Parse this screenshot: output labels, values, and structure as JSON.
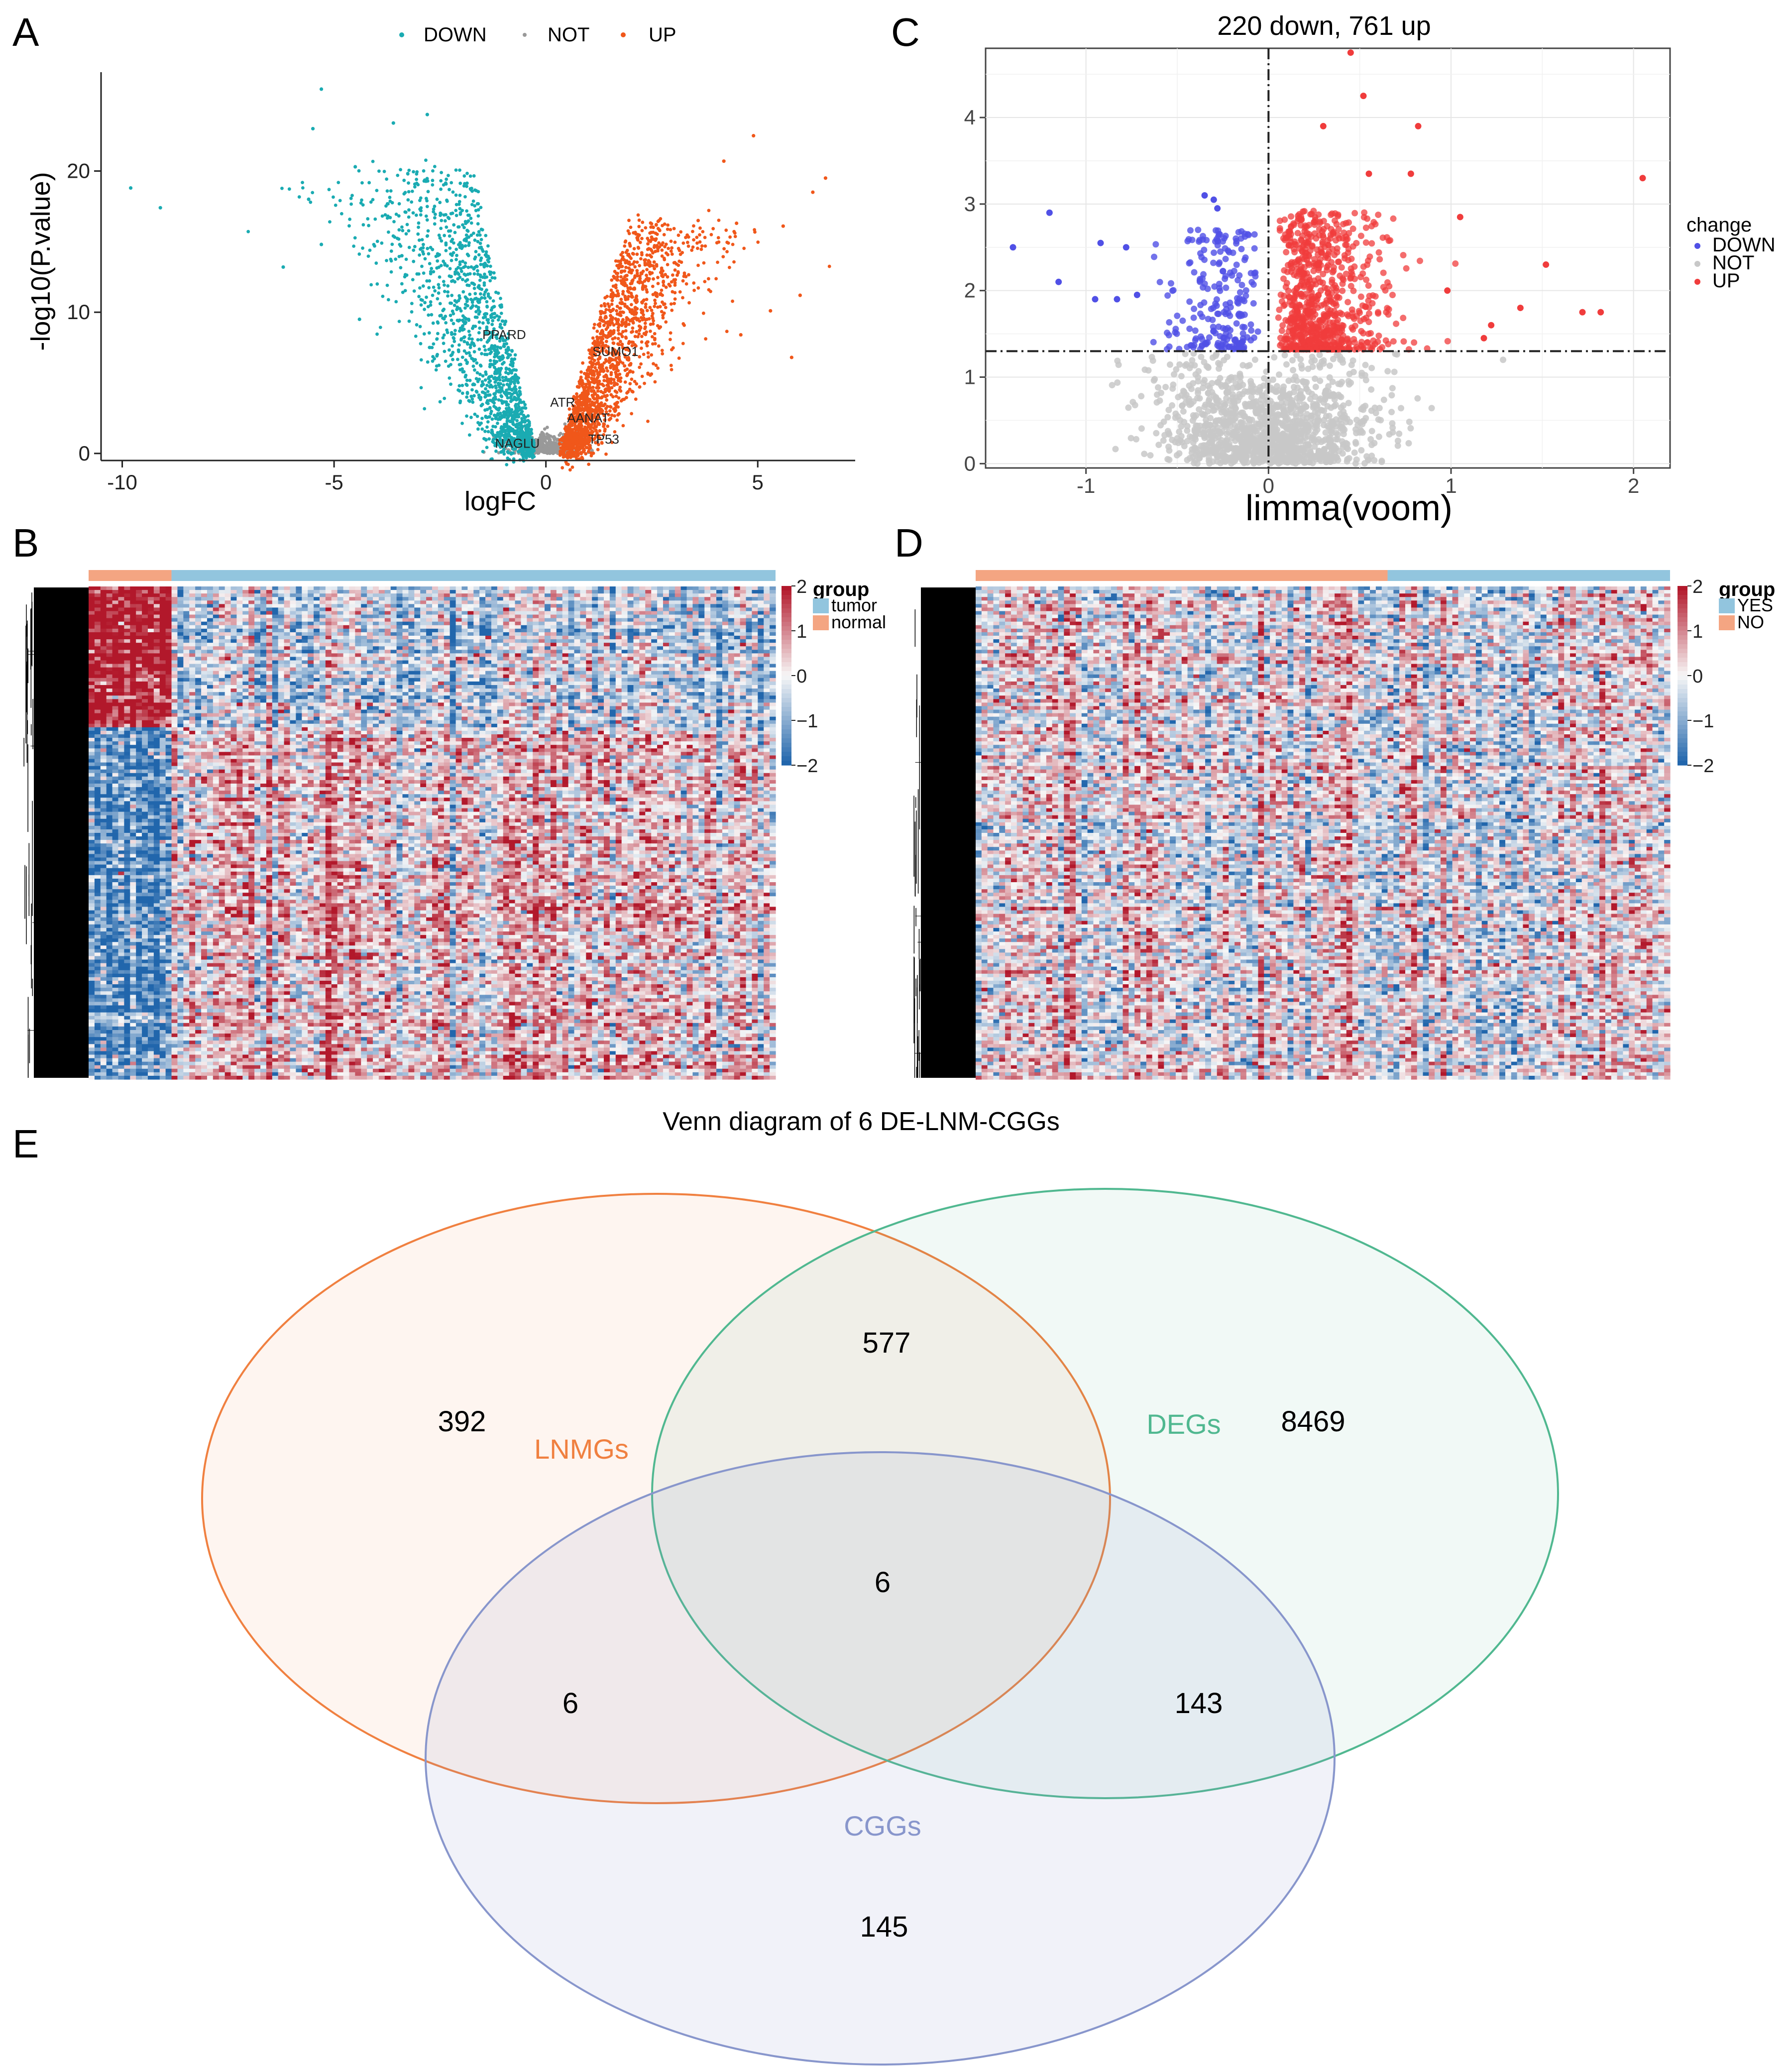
{
  "panels": {
    "A": {
      "letter": "A"
    },
    "B": {
      "letter": "B"
    },
    "C": {
      "letter": "C"
    },
    "D": {
      "letter": "D"
    },
    "E": {
      "letter": "E"
    }
  },
  "colors": {
    "down_a": "#1aabb2",
    "up_a": "#f0571a",
    "not_a": "#999999",
    "down_c": "#5050e6",
    "up_c": "#f03c3c",
    "not_c": "#c8c8c8",
    "heat_high": "#b2182b",
    "heat_mid": "#f7f7f7",
    "heat_low": "#2166ac",
    "group_tumor": "#92c5de",
    "group_normal": "#f4a582",
    "venn_lnmgs": "#f08040",
    "venn_degs": "#50b890",
    "venn_cggs": "#8896cc"
  },
  "chart_data": [
    {
      "panel": "A",
      "type": "scatter",
      "title": "",
      "xlabel": "logFC",
      "ylabel": "-log10(P.value)",
      "xlim": [
        -10.5,
        7.3
      ],
      "ylim": [
        -0.5,
        27
      ],
      "xticks": [
        -10,
        -5,
        0,
        5
      ],
      "yticks": [
        0,
        10,
        20
      ],
      "legend": {
        "position": "top",
        "entries": [
          "DOWN",
          "NOT",
          "UP"
        ]
      },
      "grid": false,
      "series_counts": {
        "DOWN": 1500,
        "NOT": 400,
        "UP": 1700
      },
      "outliers_down": [
        [
          -9.8,
          18.8
        ],
        [
          -9.1,
          17.4
        ],
        [
          -5.3,
          25.8
        ],
        [
          -5.5,
          23
        ],
        [
          -5.6,
          18
        ],
        [
          -6.2,
          13.2
        ],
        [
          -3.6,
          23.4
        ],
        [
          -4.5,
          20.3
        ],
        [
          -2.8,
          24
        ],
        [
          -3.4,
          14
        ],
        [
          -4.4,
          9.5
        ],
        [
          -5.3,
          14.8
        ]
      ],
      "outliers_up": [
        [
          6.6,
          19.5
        ],
        [
          4.9,
          22.5
        ],
        [
          4.2,
          20.7
        ],
        [
          6.3,
          18.5
        ],
        [
          5.6,
          16.1
        ],
        [
          4.5,
          16.3
        ],
        [
          5.8,
          6.8
        ],
        [
          6.0,
          11.2
        ],
        [
          5.3,
          10.1
        ],
        [
          4.6,
          8.4
        ]
      ],
      "gene_labels": [
        {
          "text": "PPARD",
          "x": -1.5,
          "y": 8.1
        },
        {
          "text": "SUMO1",
          "x": 1.1,
          "y": 6.9
        },
        {
          "text": "ATR",
          "x": 0.1,
          "y": 3.3
        },
        {
          "text": "AANAT",
          "x": 0.5,
          "y": 2.2
        },
        {
          "text": "NAGLU",
          "x": -1.2,
          "y": 0.4
        },
        {
          "text": "TP53",
          "x": 1.0,
          "y": 0.7
        }
      ]
    },
    {
      "panel": "C",
      "type": "scatter",
      "title": "220 down, 761 up",
      "xlabel": "limma(voom)",
      "ylabel": "",
      "xlim": [
        -1.55,
        2.2
      ],
      "ylim": [
        -0.05,
        4.8
      ],
      "xticks": [
        -1,
        0,
        1,
        2
      ],
      "yticks": [
        0,
        1,
        2,
        3,
        4
      ],
      "legend": {
        "position": "right",
        "title": "change",
        "entries": [
          "DOWN",
          "NOT",
          "UP"
        ]
      },
      "grid": true,
      "threshold_y": 1.3,
      "threshold_x": 0,
      "counts": {
        "DOWN": 220,
        "UP": 761
      },
      "outliers_down": [
        [
          -1.4,
          2.5
        ],
        [
          -1.2,
          2.9
        ],
        [
          -1.15,
          2.1
        ],
        [
          -0.95,
          1.9
        ],
        [
          -0.83,
          1.9
        ],
        [
          -0.92,
          2.55
        ],
        [
          -0.78,
          2.5
        ],
        [
          -0.72,
          1.95
        ],
        [
          -0.35,
          3.1
        ],
        [
          -0.3,
          3.05
        ],
        [
          -0.28,
          2.95
        ]
      ],
      "outliers_up": [
        [
          0.45,
          4.75
        ],
        [
          0.52,
          4.25
        ],
        [
          0.3,
          3.9
        ],
        [
          0.82,
          3.9
        ],
        [
          2.05,
          3.3
        ],
        [
          0.78,
          3.35
        ],
        [
          0.55,
          3.35
        ],
        [
          1.05,
          2.85
        ],
        [
          1.52,
          2.3
        ],
        [
          1.38,
          1.8
        ],
        [
          1.72,
          1.75
        ],
        [
          1.82,
          1.75
        ],
        [
          1.22,
          1.6
        ],
        [
          1.18,
          1.45
        ],
        [
          0.98,
          2.0
        ]
      ]
    },
    {
      "panel": "B",
      "type": "heatmap",
      "legend_title": "group",
      "legend_entries": [
        "tumor",
        "normal"
      ],
      "colorbar_ticks": [
        "2",
        "1",
        "0",
        "−1",
        "−2"
      ],
      "n_samples": 116,
      "n_rows": 140,
      "groups": [
        {
          "name": "normal",
          "count": 14
        },
        {
          "name": "tumor",
          "count": 102
        }
      ]
    },
    {
      "panel": "D",
      "type": "heatmap",
      "legend_title": "group",
      "legend_entries": [
        "YES",
        "NO"
      ],
      "colorbar_ticks": [
        "2",
        "1",
        "0",
        "−1",
        "−2"
      ],
      "n_samples": 118,
      "n_rows": 140,
      "groups": [
        {
          "name": "NO",
          "count": 70
        },
        {
          "name": "YES",
          "count": 48
        }
      ]
    },
    {
      "panel": "E",
      "type": "venn",
      "title": "Venn diagram of 6 DE-LNM-CGGs",
      "sets": [
        "LNMGs",
        "DEGs",
        "CGGs"
      ],
      "regions": [
        {
          "sets": [
            "LNMGs"
          ],
          "value": 392
        },
        {
          "sets": [
            "DEGs"
          ],
          "value": 8469
        },
        {
          "sets": [
            "CGGs"
          ],
          "value": 145
        },
        {
          "sets": [
            "LNMGs",
            "DEGs"
          ],
          "value": 577
        },
        {
          "sets": [
            "LNMGs",
            "CGGs"
          ],
          "value": 6
        },
        {
          "sets": [
            "DEGs",
            "CGGs"
          ],
          "value": 143
        },
        {
          "sets": [
            "LNMGs",
            "DEGs",
            "CGGs"
          ],
          "value": 6
        }
      ]
    }
  ]
}
